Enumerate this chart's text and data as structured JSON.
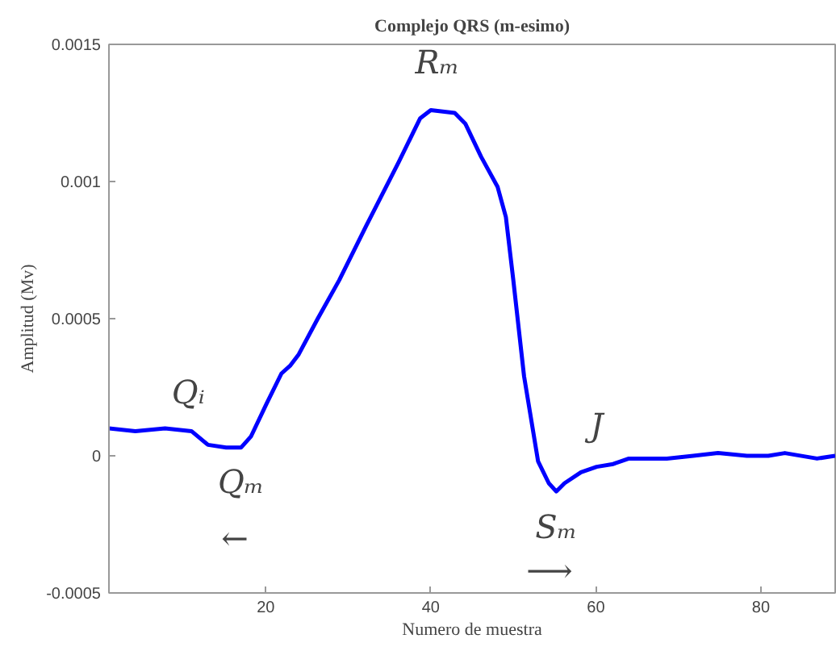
{
  "chart_data": {
    "type": "line",
    "title": "Complejo QRS (m-esimo)",
    "xlabel": "Numero de muestra",
    "ylabel": "Amplitud (Mv)",
    "x": [
      1,
      4.2,
      7.8,
      11,
      13,
      15.2,
      17,
      18.2,
      20.1,
      21.9,
      23,
      24,
      26.3,
      28.9,
      32.2,
      36.1,
      38.7,
      40,
      42.9,
      44.2,
      46.1,
      48.1,
      49.1,
      50,
      51.3,
      53,
      54.3,
      55.2,
      56.2,
      58.2,
      60.1,
      62.1,
      64,
      66,
      68.6,
      71.8,
      74.8,
      78.3,
      80.9,
      82.9,
      86.8,
      89
    ],
    "series": [
      {
        "color": "#0000ff",
        "values": [
          0.0001,
          9e-05,
          0.0001,
          9e-05,
          4e-05,
          3e-05,
          3e-05,
          7e-05,
          0.00019,
          0.0003,
          0.00033,
          0.00037,
          0.0005,
          0.00064,
          0.00084,
          0.00107,
          0.00123,
          0.00126,
          0.00125,
          0.00121,
          0.00109,
          0.00098,
          0.00087,
          0.00064,
          0.00029,
          -2e-05,
          -0.0001,
          -0.00013,
          -0.0001,
          -6e-05,
          -4e-05,
          -3e-05,
          -1e-05,
          -1e-05,
          -1e-05,
          0,
          1e-05,
          0,
          0,
          1e-05,
          -1e-05,
          0
        ]
      }
    ],
    "xlim": [
      1,
      89
    ],
    "xticks": [
      20,
      40,
      60,
      80
    ],
    "ylim": [
      -0.0005,
      0.0015
    ],
    "yticks": [
      -0.0005,
      0,
      0.0005,
      0.001,
      0.0015
    ],
    "grid": false,
    "marker": "none",
    "line_style": "solid",
    "annotations": [
      {
        "text": "Qᵢ",
        "x": 11,
        "y": 9e-05
      },
      {
        "text": "Qₘ",
        "x": 17,
        "y": 3e-05
      },
      {
        "text": "Rₘ",
        "x": 40,
        "y": 0.00126
      },
      {
        "text": "Sₘ",
        "x": 55.2,
        "y": -0.00013
      },
      {
        "text": "J",
        "x": 60.1,
        "y": -4e-05
      },
      "←",
      "⟶"
    ]
  }
}
